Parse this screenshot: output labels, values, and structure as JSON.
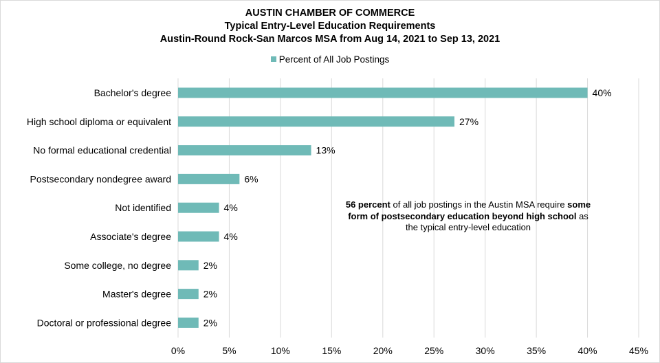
{
  "chart_data": {
    "type": "bar",
    "orientation": "horizontal",
    "title": "AUSTIN CHAMBER OF COMMERCE",
    "subtitle": "Typical Entry-Level Education Requirements",
    "subtitle2": "Austin-Round Rock-San Marcos MSA from Aug 14, 2021 to Sep 13, 2021",
    "categories": [
      "Bachelor's degree",
      "High school diploma or equivalent",
      "No formal educational credential",
      "Postsecondary nondegree award",
      "Not identified",
      "Associate's degree",
      "Some college, no degree",
      "Master's degree",
      "Doctoral or professional degree"
    ],
    "series": [
      {
        "name": "Percent of All Job Postings",
        "values": [
          40,
          27,
          13,
          6,
          4,
          4,
          2,
          2,
          2
        ],
        "labels": [
          "40%",
          "27%",
          "13%",
          "6%",
          "4%",
          "4%",
          "2%",
          "2%",
          "2%"
        ],
        "color": "#6fbab7"
      }
    ],
    "xlim": [
      0,
      45
    ],
    "xticks": [
      "0%",
      "5%",
      "10%",
      "15%",
      "20%",
      "25%",
      "30%",
      "35%",
      "40%",
      "45%"
    ],
    "grid": "vertical",
    "legend_position": "top",
    "annotation": {
      "strong1": "56 percent",
      "text1": " of all job postings in the Austin MSA require ",
      "strong2": "some form of postsecondary education beyond high school",
      "text2": " as the typical entry-level education"
    }
  }
}
